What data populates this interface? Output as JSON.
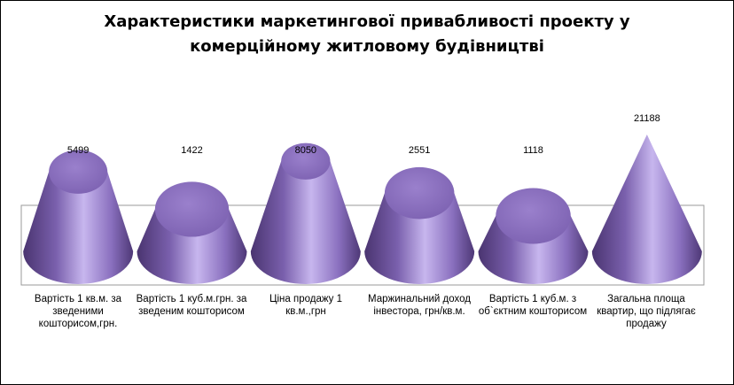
{
  "chart_data": {
    "type": "bar",
    "mark": "cone",
    "title_lines": [
      "Характеристики маркетингової привабливості проекту у",
      "комерційному житловому  будівництві"
    ],
    "categories": [
      "Вартість 1 кв.м. за зведеними кошторисом,грн.",
      "Вартість 1 куб.м.грн. за зведеним кошторисом",
      "Ціна  продажу 1 кв.м.,грн",
      "Маржинальний доход інвестора, грн/кв.м.",
      "Вартість 1 куб.м. з об`єктним кошторисом",
      "Загальна площа квартир, що підлягає  продажу"
    ],
    "values": [
      5499,
      1422,
      8050,
      2551,
      1118,
      21188
    ],
    "value_labels": [
      "5499",
      "1422",
      "8050",
      "2551",
      "1118",
      "21188"
    ],
    "color": "#8B6FC0",
    "grid": false,
    "legend": "none"
  }
}
